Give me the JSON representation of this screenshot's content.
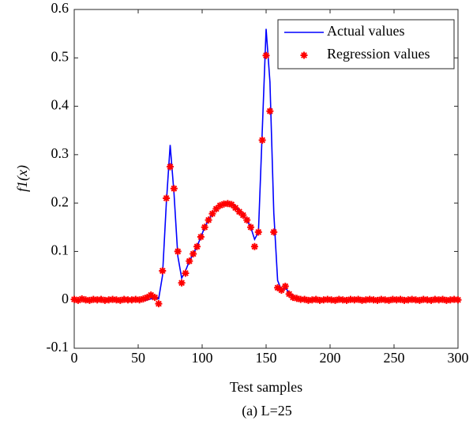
{
  "chart_data": {
    "type": "line",
    "title": "(a) L=25",
    "xlabel": "Test samples",
    "ylabel": "f1(x)",
    "x": [
      0,
      3,
      6,
      9,
      12,
      15,
      18,
      21,
      24,
      27,
      30,
      33,
      36,
      39,
      42,
      45,
      48,
      51,
      54,
      57,
      60,
      63,
      66,
      69,
      72,
      75,
      78,
      81,
      84,
      87,
      90,
      93,
      96,
      99,
      102,
      105,
      108,
      111,
      114,
      117,
      120,
      123,
      126,
      129,
      132,
      135,
      138,
      141,
      144,
      147,
      150,
      153,
      156,
      159,
      162,
      165,
      168,
      171,
      174,
      177,
      180,
      183,
      186,
      189,
      192,
      195,
      198,
      201,
      204,
      207,
      210,
      213,
      216,
      219,
      222,
      225,
      228,
      231,
      234,
      237,
      240,
      243,
      246,
      249,
      252,
      255,
      258,
      261,
      264,
      267,
      270,
      273,
      276,
      279,
      282,
      285,
      288,
      291,
      294,
      297,
      300
    ],
    "series": [
      {
        "name": "Actual values",
        "color": "#0000ff",
        "kind": "line",
        "values": [
          0,
          0,
          0,
          0,
          0,
          0,
          0,
          0,
          0,
          0,
          0,
          0,
          0,
          0,
          0,
          0,
          0,
          0,
          0,
          0,
          0.002,
          0.005,
          0.002,
          0.05,
          0.2,
          0.32,
          0.22,
          0.09,
          0.045,
          0.06,
          0.08,
          0.095,
          0.11,
          0.13,
          0.15,
          0.165,
          0.178,
          0.188,
          0.195,
          0.199,
          0.2,
          0.198,
          0.193,
          0.185,
          0.175,
          0.165,
          0.15,
          0.125,
          0.14,
          0.35,
          0.56,
          0.45,
          0.18,
          0.04,
          0.02,
          0.025,
          0.015,
          0.008,
          0.004,
          0.002,
          0,
          0,
          0,
          0,
          0,
          0,
          0,
          0,
          0,
          0,
          0,
          0,
          0,
          0,
          0,
          0,
          0,
          0,
          0,
          0,
          0,
          0,
          0,
          0,
          0,
          0,
          0,
          0,
          0,
          0,
          0,
          0,
          0,
          0,
          0,
          0,
          0,
          0,
          0,
          0,
          0
        ]
      },
      {
        "name": "Regression values",
        "color": "#ff0000",
        "kind": "scatter",
        "values": [
          0.001,
          -0.001,
          0.002,
          0,
          -0.001,
          0.001,
          0,
          0.001,
          -0.001,
          0,
          0.001,
          0,
          -0.001,
          0.001,
          0,
          0,
          0.001,
          0,
          0.002,
          0.005,
          0.01,
          0.005,
          -0.008,
          0.06,
          0.21,
          0.275,
          0.23,
          0.1,
          0.035,
          0.055,
          0.08,
          0.095,
          0.11,
          0.13,
          0.15,
          0.165,
          0.178,
          0.188,
          0.195,
          0.198,
          0.199,
          0.197,
          0.19,
          0.182,
          0.175,
          0.165,
          0.15,
          0.11,
          0.14,
          0.33,
          0.505,
          0.39,
          0.14,
          0.025,
          0.02,
          0.028,
          0.012,
          0.005,
          0.003,
          0.001,
          0.001,
          -0.001,
          0,
          0.001,
          -0.001,
          0,
          0.001,
          0,
          -0.001,
          0.001,
          0,
          -0.001,
          0.001,
          0,
          0.001,
          -0.001,
          0,
          0.001,
          0,
          -0.001,
          0.001,
          0,
          -0.001,
          0.001,
          0,
          0.001,
          -0.001,
          0,
          0.001,
          0,
          -0.001,
          0.001,
          0,
          -0.001,
          0.001,
          0,
          0.001,
          -0.001,
          0,
          0.001,
          0
        ]
      }
    ],
    "xlim": [
      0,
      300
    ],
    "xticks": [
      0,
      50,
      100,
      150,
      200,
      250,
      300
    ],
    "ylim": [
      -0.1,
      0.6
    ],
    "yticks": [
      -0.1,
      0,
      0.1,
      0.2,
      0.3,
      0.4,
      0.5,
      0.6
    ],
    "legend": "upper right"
  }
}
